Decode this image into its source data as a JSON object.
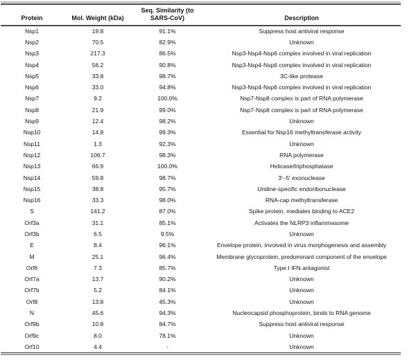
{
  "table": {
    "columns": [
      "Protein",
      "Mol. Weight (kDa)",
      "Seq. Similarity (to\nSARS-CoV)",
      "Description"
    ],
    "rows": [
      {
        "protein": "Nsp1",
        "mol_weight": "19.8",
        "similarity": "91.1%",
        "description": "Suppress host antiviral response"
      },
      {
        "protein": "Nsp2",
        "mol_weight": "70.5",
        "similarity": "82.9%",
        "description": "Unknown"
      },
      {
        "protein": "Nsp3",
        "mol_weight": "217.3",
        "similarity": "86.5%",
        "description": "Nsp3-Nsp4-Nsp6 complex involved in viral replication"
      },
      {
        "protein": "Nsp4",
        "mol_weight": "56.2",
        "similarity": "90.8%",
        "description": "Nsp3-Nsp4-Nsp6 complex involved in viral replication"
      },
      {
        "protein": "Nsp5",
        "mol_weight": "33.8",
        "similarity": "98.7%",
        "description": "3C-like protease"
      },
      {
        "protein": "Nsp6",
        "mol_weight": "33.0",
        "similarity": "94.8%",
        "description": "Nsp3-Nsp4-Nsp6 complex involved in viral replication"
      },
      {
        "protein": "Nsp7",
        "mol_weight": "9.2",
        "similarity": "100.0%",
        "description": "Nsp7-Nsp8 complex is part of RNA polymerase"
      },
      {
        "protein": "Nsp8",
        "mol_weight": "21.9",
        "similarity": "99.0%",
        "description": "Nsp7-Nsp8 complex is part of RNA polymerase"
      },
      {
        "protein": "Nsp9",
        "mol_weight": "12.4",
        "similarity": "98.2%",
        "description": "Unknown"
      },
      {
        "protein": "Nsp10",
        "mol_weight": "14.8",
        "similarity": "99.3%",
        "description": "Essential for Nsp16 methyltransferase activity"
      },
      {
        "protein": "Nsp11",
        "mol_weight": "1.3",
        "similarity": "92.3%",
        "description": "Unknown"
      },
      {
        "protein": "Nsp12",
        "mol_weight": "106.7",
        "similarity": "98.3%",
        "description": "RNA polymerase"
      },
      {
        "protein": "Nsp13",
        "mol_weight": "66.9",
        "similarity": "100.0%",
        "description": "Helicase/triphosphatase"
      },
      {
        "protein": "Nsp14",
        "mol_weight": "59.8",
        "similarity": "98.7%",
        "description": "3′–5′ exonuclease"
      },
      {
        "protein": "Nsp15",
        "mol_weight": "38.8",
        "similarity": "95.7%",
        "description": "Uridine-specific endoribonuclease"
      },
      {
        "protein": "Nsp16",
        "mol_weight": "33.3",
        "similarity": "98.0%",
        "description": "RNA-cap methyltransferase"
      },
      {
        "protein": "S",
        "mol_weight": "141.2",
        "similarity": "87.0%",
        "description": "Spike protein, mediates binding to ACE2"
      },
      {
        "protein": "Orf3a",
        "mol_weight": "31.1",
        "similarity": "85.1%",
        "description": "Activates the NLRP3 inflammasome"
      },
      {
        "protein": "Orf3b",
        "mol_weight": "6.5",
        "similarity": "9.5%",
        "description": "Unknown"
      },
      {
        "protein": "E",
        "mol_weight": "8.4",
        "similarity": "96.1%",
        "description": "Envelope protein, involved in virus morphogenesis and assembly"
      },
      {
        "protein": "M",
        "mol_weight": "25.1",
        "similarity": "96.4%",
        "description": "Membrane glycoprotein, predominant component of the envelope"
      },
      {
        "protein": "Orf6",
        "mol_weight": "7.3",
        "similarity": "85.7%",
        "description": "Type I IFN antagonist"
      },
      {
        "protein": "Orf7a",
        "mol_weight": "13.7",
        "similarity": "90.2%",
        "description": "Unknown"
      },
      {
        "protein": "Orf7b",
        "mol_weight": "5.2",
        "similarity": "84.1%",
        "description": "Unknown"
      },
      {
        "protein": "Orf8",
        "mol_weight": "13.8",
        "similarity": "45.3%",
        "description": "Unknown"
      },
      {
        "protein": "N",
        "mol_weight": "45.6",
        "similarity": "94.3%",
        "description": "Nucleocapsid phosphoprotein, binds to RNA genome"
      },
      {
        "protein": "Orf9b",
        "mol_weight": "10.8",
        "similarity": "84.7%",
        "description": "Suppress host antiviral response"
      },
      {
        "protein": "Orf9c",
        "mol_weight": "8.0",
        "similarity": "78.1%",
        "description": "Unknown"
      },
      {
        "protein": "Orf10",
        "mol_weight": "4.4",
        "similarity": "-",
        "description": "Unknown"
      }
    ]
  }
}
